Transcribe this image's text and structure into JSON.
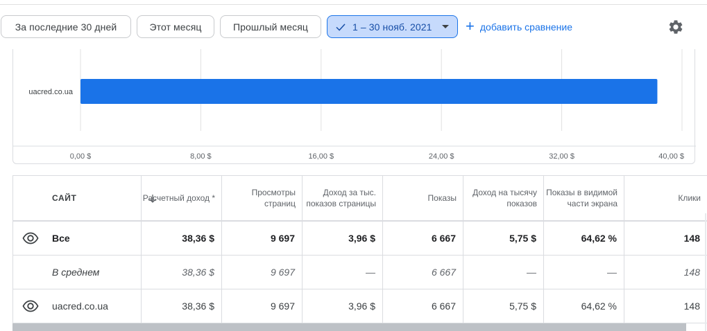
{
  "filters": {
    "last30": "За последние 30 дней",
    "this_month": "Этот месяц",
    "last_month": "Прошлый месяц",
    "selected_range": "1 – 30 нояб. 2021",
    "add_comparison": "добавить сравнение"
  },
  "icons": {
    "check": "check-icon",
    "caret": "caret-down-icon",
    "plus": "plus-icon",
    "settings": "gear-icon",
    "sort": "arrow-down-icon",
    "visibility": "eye-icon"
  },
  "colors": {
    "accent": "#1a73e8",
    "selected_chip_bg": "#c6dafc",
    "bar": "#1a73e8"
  },
  "chart_data": {
    "type": "bar",
    "orientation": "horizontal",
    "categories": [
      "uacred.co.ua"
    ],
    "values": [
      38.36
    ],
    "xlim": [
      0,
      40
    ],
    "ticks": [
      0,
      8,
      16,
      24,
      32,
      40
    ],
    "tick_labels": [
      "0,00 $",
      "8,00 $",
      "16,00 $",
      "24,00 $",
      "32,00 $",
      "40,00 $"
    ],
    "grid": true,
    "color": "#1a73e8"
  },
  "table": {
    "headers": [
      "САЙТ",
      "Расчетный доход *",
      "Просмотры страниц",
      "Доход за тыс. показов страницы",
      "Показы",
      "Доход на тысячу показов",
      "Показы в видимой части экрана",
      "Клики"
    ],
    "rows": {
      "total": [
        "Все",
        "38,36 $",
        "9 697",
        "3,96 $",
        "6 667",
        "5,75 $",
        "64,62 %",
        "148"
      ],
      "average": [
        "В среднем",
        "38,36 $",
        "9 697",
        "—",
        "6 667",
        "—",
        "—",
        "148"
      ],
      "site": [
        "uacred.co.ua",
        "38,36 $",
        "9 697",
        "3,96 $",
        "6 667",
        "5,75 $",
        "64,62 %",
        "148"
      ]
    }
  }
}
